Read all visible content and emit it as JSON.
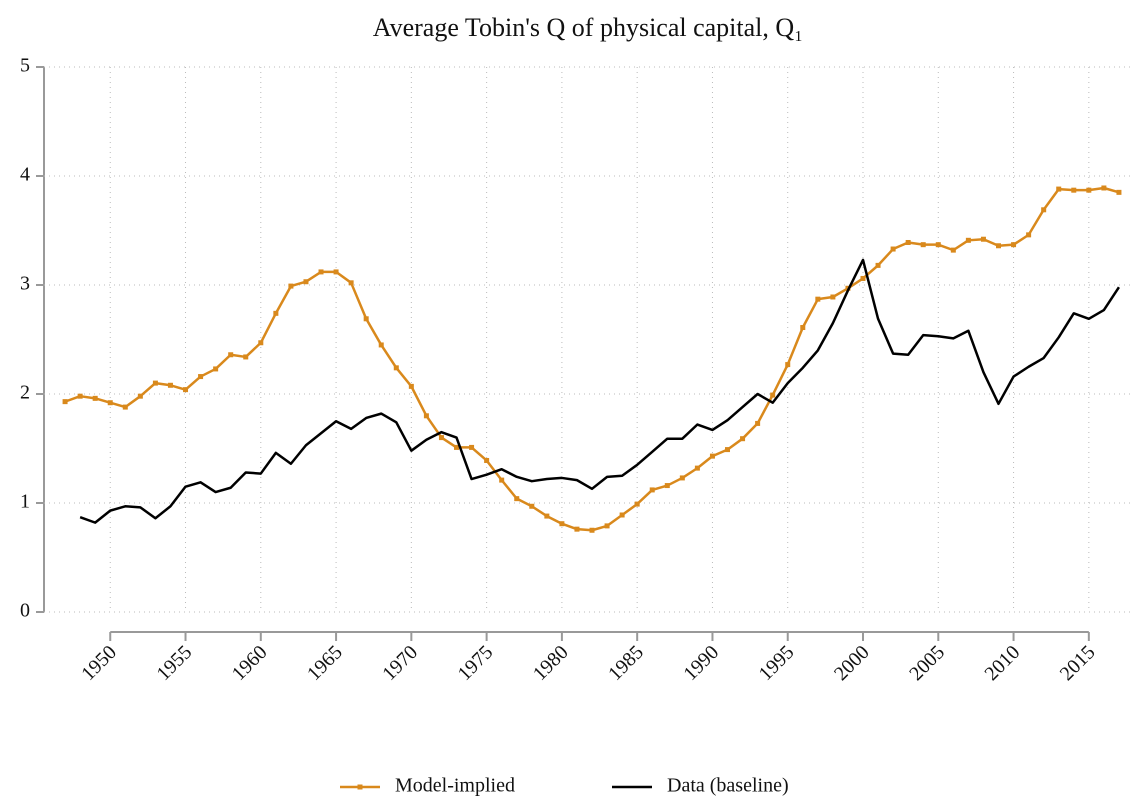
{
  "chart_data": {
    "type": "line",
    "title": "Average Tobin's Q of physical capital, Q₁",
    "x": [
      1947,
      1948,
      1949,
      1950,
      1951,
      1952,
      1953,
      1954,
      1955,
      1956,
      1957,
      1958,
      1959,
      1960,
      1961,
      1962,
      1963,
      1964,
      1965,
      1966,
      1967,
      1968,
      1969,
      1970,
      1971,
      1972,
      1973,
      1974,
      1975,
      1976,
      1977,
      1978,
      1979,
      1980,
      1981,
      1982,
      1983,
      1984,
      1985,
      1986,
      1987,
      1988,
      1989,
      1990,
      1991,
      1992,
      1993,
      1994,
      1995,
      1996,
      1997,
      1998,
      1999,
      2000,
      2001,
      2002,
      2003,
      2004,
      2005,
      2006,
      2007,
      2008,
      2009,
      2010,
      2011,
      2012,
      2013,
      2014,
      2015,
      2016,
      2017
    ],
    "series": [
      {
        "name": "Model-implied",
        "color": "#d9891c",
        "markers": true,
        "values": [
          1.93,
          1.98,
          1.96,
          1.92,
          1.88,
          1.98,
          2.1,
          2.08,
          2.04,
          2.16,
          2.23,
          2.36,
          2.34,
          2.47,
          2.74,
          2.99,
          3.03,
          3.12,
          3.12,
          3.02,
          2.69,
          2.45,
          2.24,
          2.07,
          1.8,
          1.6,
          1.51,
          1.51,
          1.39,
          1.21,
          1.04,
          0.97,
          0.88,
          0.81,
          0.76,
          0.75,
          0.79,
          0.89,
          0.99,
          1.12,
          1.16,
          1.23,
          1.32,
          1.43,
          1.49,
          1.59,
          1.73,
          1.99,
          2.27,
          2.61,
          2.87,
          2.89,
          2.97,
          3.06,
          3.18,
          3.33,
          3.39,
          3.37,
          3.37,
          3.32,
          3.41,
          3.42,
          3.36,
          3.37,
          3.46,
          3.69,
          3.88,
          3.87,
          3.87,
          3.89,
          3.85
        ]
      },
      {
        "name": "Data (baseline)",
        "color": "#000000",
        "markers": false,
        "values": [
          null,
          0.87,
          0.82,
          0.93,
          0.97,
          0.96,
          0.86,
          0.97,
          1.15,
          1.19,
          1.1,
          1.14,
          1.28,
          1.27,
          1.46,
          1.36,
          1.53,
          1.64,
          1.75,
          1.68,
          1.78,
          1.82,
          1.74,
          1.48,
          1.58,
          1.65,
          1.6,
          1.22,
          1.26,
          1.31,
          1.24,
          1.2,
          1.22,
          1.23,
          1.21,
          1.13,
          1.24,
          1.25,
          1.35,
          1.47,
          1.59,
          1.59,
          1.72,
          1.67,
          1.76,
          1.88,
          2.0,
          1.92,
          2.1,
          2.24,
          2.4,
          2.65,
          2.95,
          3.23,
          2.69,
          2.37,
          2.36,
          2.54,
          2.53,
          2.51,
          2.58,
          2.2,
          1.91,
          2.16,
          2.25,
          2.33,
          2.52,
          2.74,
          2.69,
          2.77,
          2.98
        ]
      }
    ],
    "xlim": [
      1945.6,
      2018
    ],
    "xticks": [
      1950,
      1955,
      1960,
      1965,
      1970,
      1975,
      1980,
      1985,
      1990,
      1995,
      2000,
      2005,
      2010,
      2015
    ],
    "ylim": [
      0,
      5
    ],
    "yticks": [
      0,
      1,
      2,
      3,
      4,
      5
    ],
    "grid": true,
    "legend": "bottom"
  }
}
